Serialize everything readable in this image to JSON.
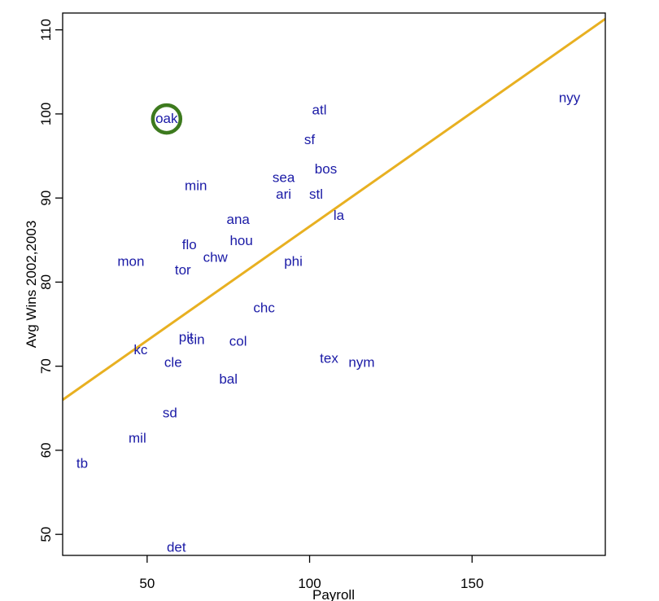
{
  "chart_data": {
    "type": "scatter",
    "title": "",
    "xlabel": "Payroll",
    "ylabel": "Avg Wins 2002,2003",
    "xlim": [
      24,
      191
    ],
    "ylim": [
      47.5,
      112
    ],
    "xticks": [
      50,
      100,
      150
    ],
    "yticks": [
      50,
      60,
      70,
      80,
      90,
      100,
      110
    ],
    "grid": false,
    "points": [
      {
        "label": "nyy",
        "x": 180,
        "y": 102
      },
      {
        "label": "atl",
        "x": 103,
        "y": 100.5
      },
      {
        "label": "oak",
        "x": 56,
        "y": 99.5
      },
      {
        "label": "sf",
        "x": 100,
        "y": 97
      },
      {
        "label": "bos",
        "x": 105,
        "y": 93.5
      },
      {
        "label": "sea",
        "x": 92,
        "y": 92.5
      },
      {
        "label": "min",
        "x": 65,
        "y": 91.5
      },
      {
        "label": "ari",
        "x": 92,
        "y": 90.5
      },
      {
        "label": "stl",
        "x": 102,
        "y": 90.5
      },
      {
        "label": "la",
        "x": 109,
        "y": 88
      },
      {
        "label": "ana",
        "x": 78,
        "y": 87.5
      },
      {
        "label": "hou",
        "x": 79,
        "y": 85
      },
      {
        "label": "flo",
        "x": 63,
        "y": 84.5
      },
      {
        "label": "chw",
        "x": 71,
        "y": 83
      },
      {
        "label": "mon",
        "x": 45,
        "y": 82.5
      },
      {
        "label": "phi",
        "x": 95,
        "y": 82.5
      },
      {
        "label": "tor",
        "x": 61,
        "y": 81.5
      },
      {
        "label": "chc",
        "x": 86,
        "y": 77
      },
      {
        "label": "pit",
        "x": 62,
        "y": 73.5
      },
      {
        "label": "cin",
        "x": 65,
        "y": 73.2
      },
      {
        "label": "col",
        "x": 78,
        "y": 73
      },
      {
        "label": "kc",
        "x": 48,
        "y": 72
      },
      {
        "label": "tex",
        "x": 106,
        "y": 71
      },
      {
        "label": "cle",
        "x": 58,
        "y": 70.5
      },
      {
        "label": "nym",
        "x": 116,
        "y": 70.5
      },
      {
        "label": "bal",
        "x": 75,
        "y": 68.5
      },
      {
        "label": "sd",
        "x": 57,
        "y": 64.5
      },
      {
        "label": "mil",
        "x": 47,
        "y": 61.5
      },
      {
        "label": "tb",
        "x": 30,
        "y": 58.5
      },
      {
        "label": "det",
        "x": 59,
        "y": 48.5
      }
    ],
    "fit_line": {
      "x": [
        24,
        191
      ],
      "y": [
        66,
        111.3
      ]
    },
    "highlight": "oak",
    "colors": {
      "points": "#1a1aa6",
      "fit_line": "#e8b021",
      "highlight": "#3d7a1e",
      "axis": "#000000"
    }
  }
}
